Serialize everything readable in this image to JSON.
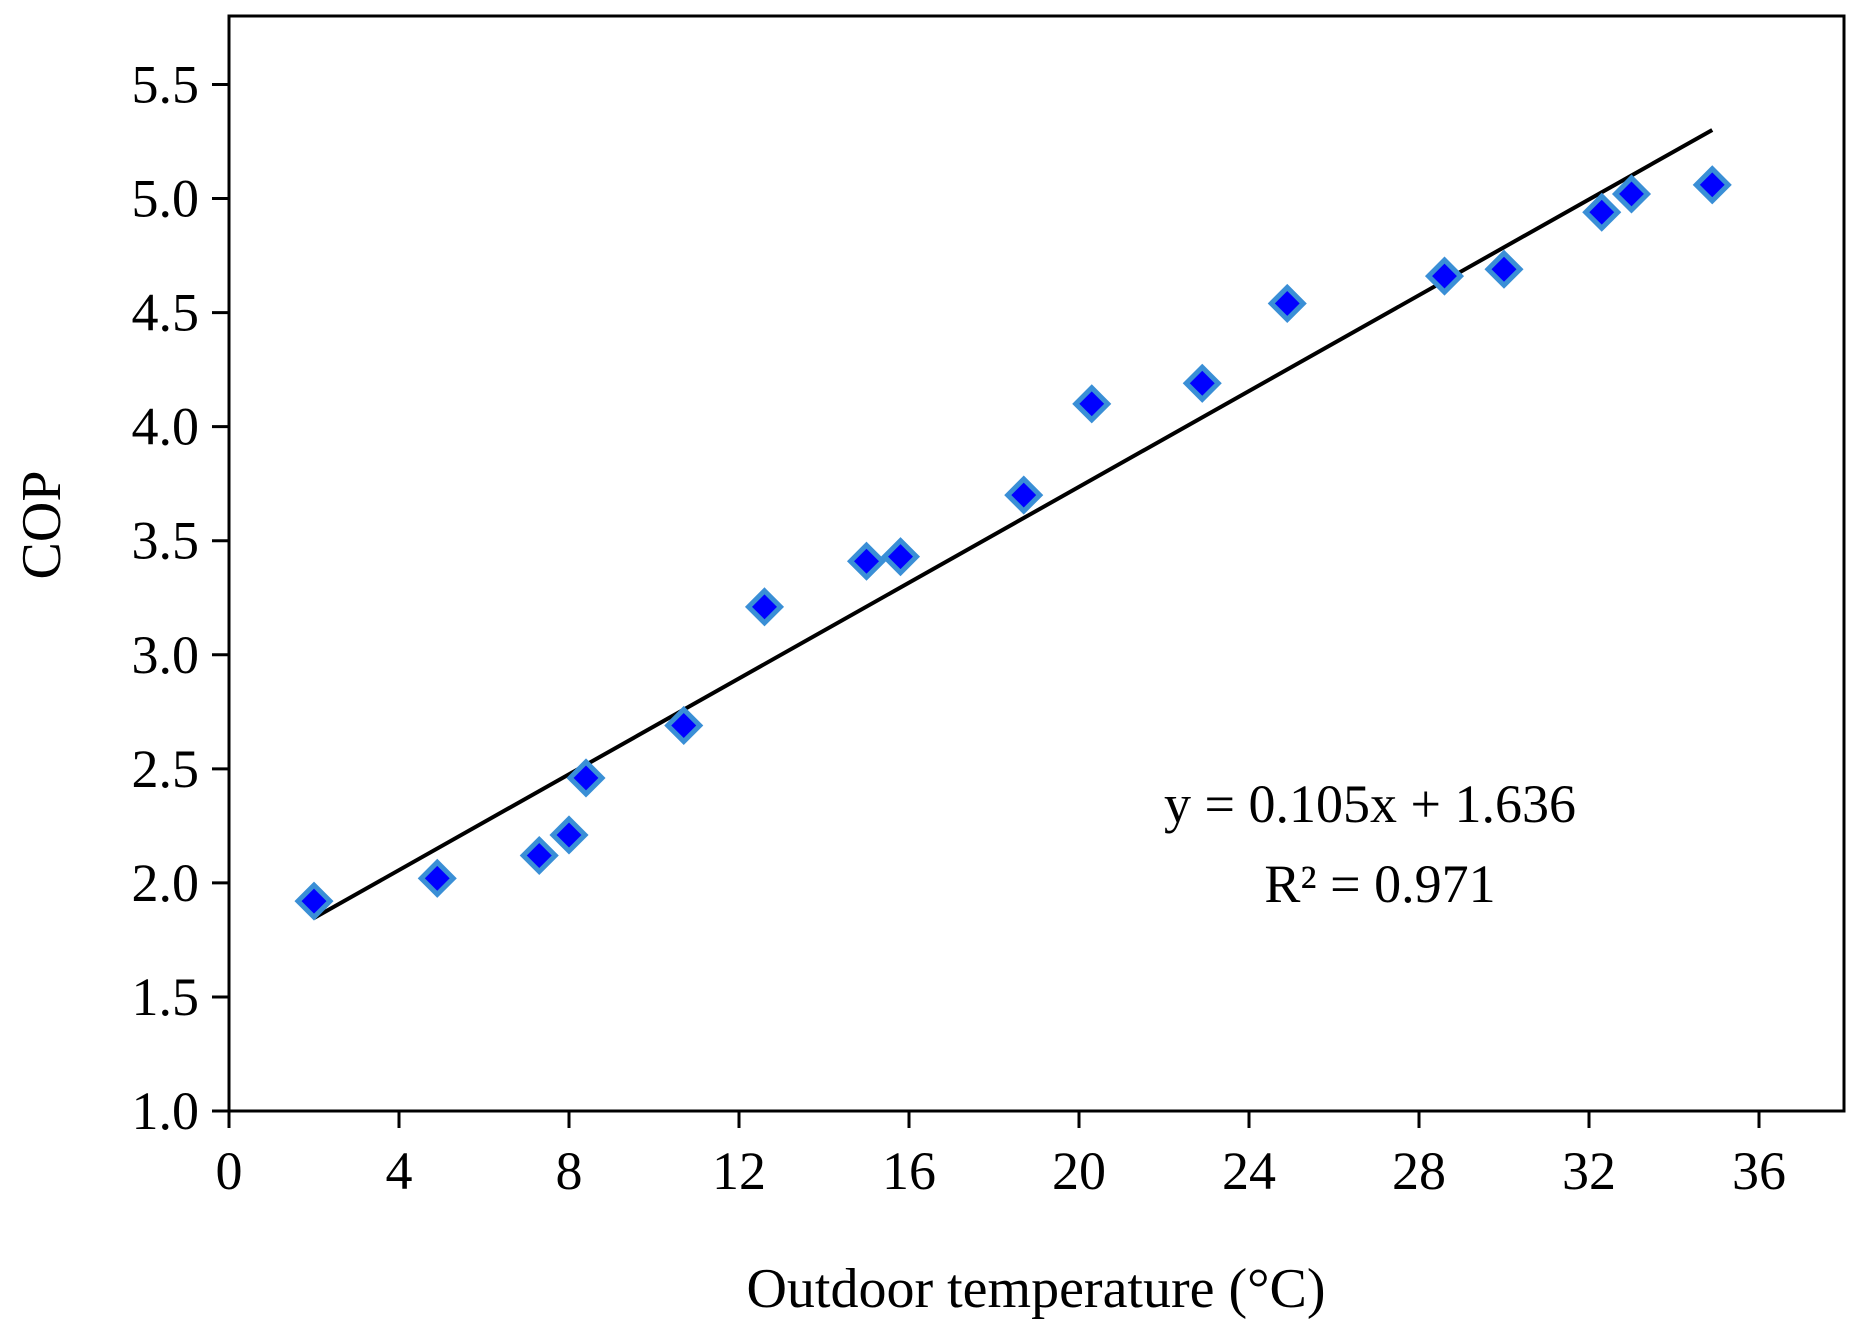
{
  "chart_data": {
    "type": "scatter",
    "title": "",
    "xlabel": "Outdoor temperature (°C)",
    "ylabel": "COP",
    "xlim": [
      0,
      38
    ],
    "ylim": [
      1.0,
      5.8
    ],
    "xticks": [
      0,
      4,
      8,
      12,
      16,
      20,
      24,
      28,
      32,
      36
    ],
    "xtick_labels": [
      "0",
      "4",
      "8",
      "12",
      "16",
      "20",
      "24",
      "28",
      "32",
      "36"
    ],
    "yticks": [
      1.0,
      1.5,
      2.0,
      2.5,
      3.0,
      3.5,
      4.0,
      4.5,
      5.0,
      5.5
    ],
    "ytick_labels": [
      "1.0",
      "1.5",
      "2.0",
      "2.5",
      "3.0",
      "3.5",
      "4.0",
      "4.5",
      "5.0",
      "5.5"
    ],
    "grid": false,
    "series": [
      {
        "name": "COP",
        "x": [
          2.0,
          4.9,
          7.3,
          8.0,
          8.4,
          10.7,
          12.6,
          15.0,
          15.8,
          18.7,
          20.3,
          22.9,
          24.9,
          28.6,
          30.0,
          32.3,
          33.0,
          34.9
        ],
        "y": [
          1.92,
          2.02,
          2.12,
          2.21,
          2.46,
          2.69,
          3.21,
          3.41,
          3.43,
          3.7,
          4.1,
          4.19,
          4.54,
          4.66,
          4.69,
          4.94,
          5.02,
          5.06
        ],
        "marker_color": "#0000ff",
        "marker_edge_color": "#3a8fd6"
      }
    ],
    "trendline": {
      "slope": 0.105,
      "intercept": 1.636,
      "x_range": [
        2.0,
        34.9
      ],
      "color": "#000000"
    },
    "annotations": [
      "y = 0.105x + 1.636",
      "R² = 0.971"
    ]
  }
}
